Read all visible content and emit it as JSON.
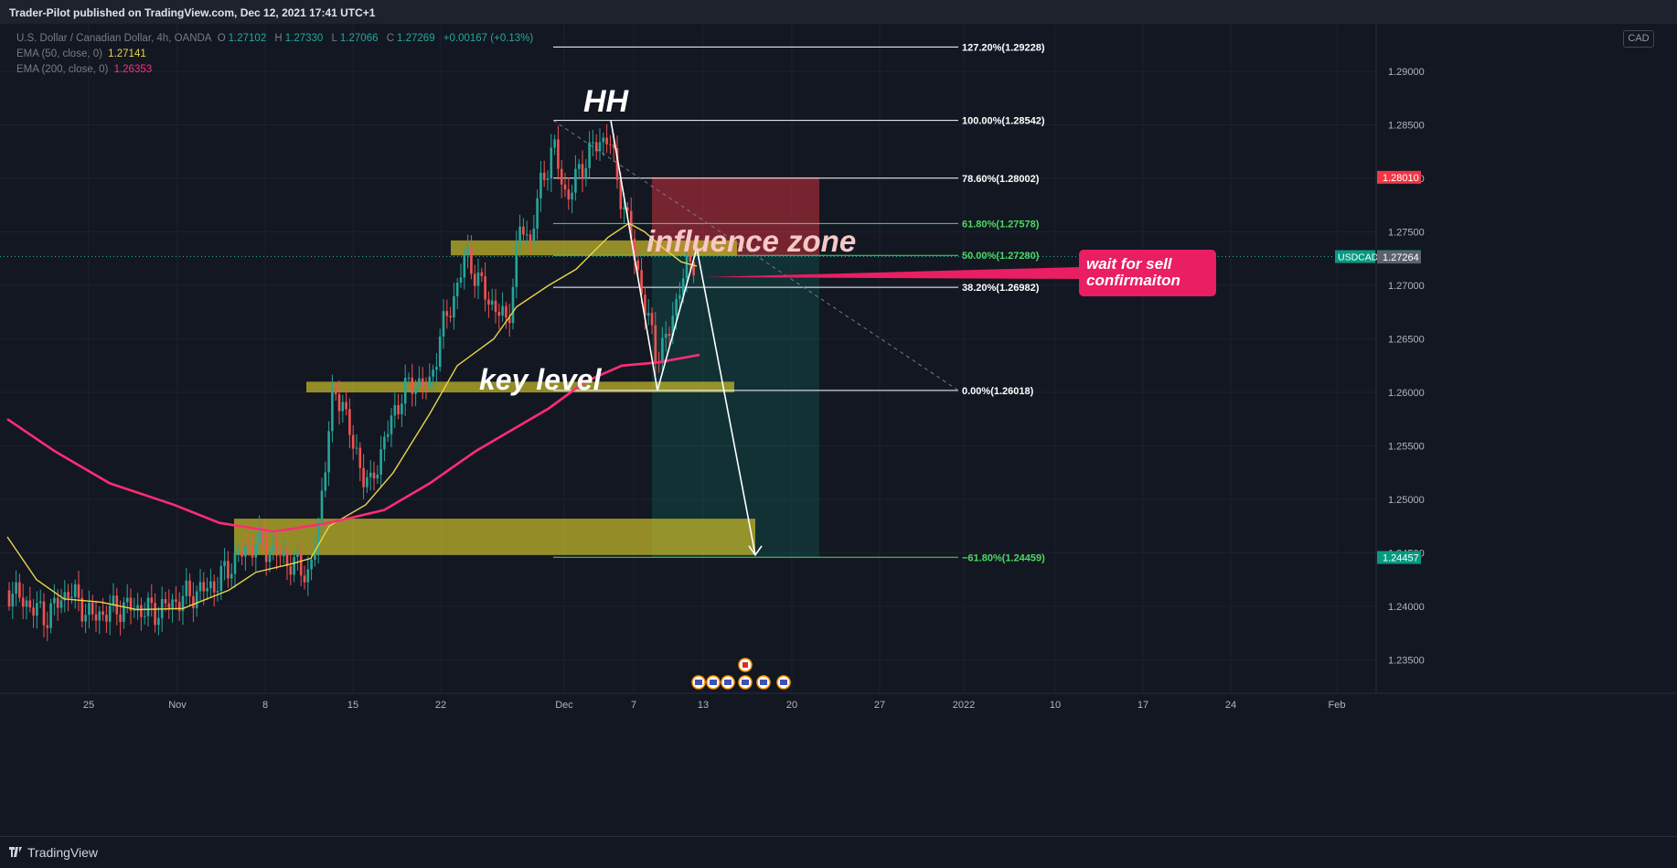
{
  "header": {
    "published": "Trader-Pilot published on TradingView.com, Dec 12, 2021 17:41 UTC+1"
  },
  "footer": {
    "brand": "TradingView"
  },
  "legend": {
    "symbol": "U.S. Dollar / Canadian Dollar, 4h, OANDA",
    "ohlc": [
      {
        "label": "O",
        "value": "1.27102"
      },
      {
        "label": "H",
        "value": "1.27330"
      },
      {
        "label": "L",
        "value": "1.27066"
      },
      {
        "label": "C",
        "value": "1.27269"
      }
    ],
    "change": "+0.00167 (+0.13%)",
    "indicators": [
      {
        "name": "EMA (50, close, 0)",
        "value": "1.27141",
        "color": "#e8d64a"
      },
      {
        "name": "EMA (200, close, 0)",
        "value": "1.26353",
        "color": "#ff2d75"
      }
    ]
  },
  "currency_box": "CAD",
  "chart_data": {
    "type": "candlestick",
    "symbol": "USDCAD",
    "timeframe": "4h",
    "y_range": [
      1.2318,
      1.2955
    ],
    "y_ticks": [
      "1.29000",
      "1.28500",
      "1.28000",
      "1.27500",
      "1.27000",
      "1.26500",
      "1.26000",
      "1.25500",
      "1.25000",
      "1.24500",
      "1.24000",
      "1.23500"
    ],
    "x_ticks": [
      "25",
      "Nov",
      "8",
      "15",
      "22",
      "Dec",
      "7",
      "13",
      "20",
      "27",
      "2022",
      "10",
      "17",
      "24",
      "Feb"
    ],
    "price_labels": [
      {
        "text": "1.28010",
        "value": 1.2801,
        "color": "#f23645"
      },
      {
        "text": "1.27269",
        "value": 1.27269,
        "color": "#089981",
        "tag": "USDCAD"
      },
      {
        "text": "1.27264",
        "value": 1.27264,
        "color": "#5d606b"
      },
      {
        "text": "1.24457",
        "value": 1.24457,
        "color": "#089981"
      }
    ],
    "fib_levels": [
      {
        "label": "127.20%(1.29228)",
        "value": 1.29228,
        "color": "#ffffff"
      },
      {
        "label": "100.00%(1.28542)",
        "value": 1.28542,
        "color": "#ffffff"
      },
      {
        "label": "78.60%(1.28002)",
        "value": 1.28002,
        "color": "#ffffff"
      },
      {
        "label": "61.80%(1.27578)",
        "value": 1.27578,
        "color": "#4cd964"
      },
      {
        "label": "50.00%(1.27280)",
        "value": 1.2728,
        "color": "#4cd964"
      },
      {
        "label": "38.20%(1.26982)",
        "value": 1.26982,
        "color": "#ffffff"
      },
      {
        "label": "0.00%(1.26018)",
        "value": 1.26018,
        "color": "#ffffff"
      },
      {
        "label": "−61.80%(1.24459)",
        "value": 1.24459,
        "color": "#4cd964"
      }
    ],
    "position": {
      "entry": 1.2728,
      "stop": 1.2801,
      "target": 1.24457
    },
    "zones": [
      {
        "low": 1.2728,
        "high": 1.2742
      },
      {
        "low": 1.26,
        "high": 1.261
      },
      {
        "low": 1.2448,
        "high": 1.2482
      }
    ],
    "annotations": {
      "hh": "HH",
      "influence": "influence zone",
      "key_level": "key level",
      "callout_line1": "wait for sell",
      "callout_line2": "confirmaiton"
    },
    "series": [
      {
        "name": "EMA (50, close, 0)",
        "color": "#e8d64a"
      },
      {
        "name": "EMA (200, close, 0)",
        "color": "#ff2d75"
      }
    ],
    "up_color": "#26a69a",
    "down_color": "#ef5350"
  }
}
